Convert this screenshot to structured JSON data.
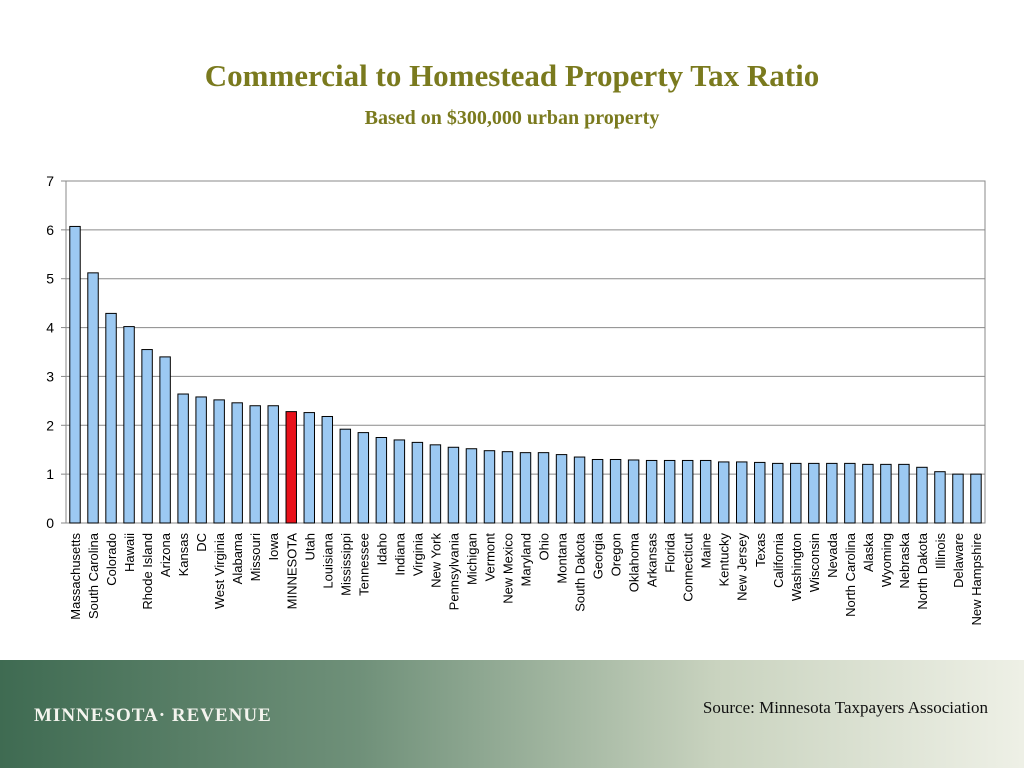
{
  "header": {
    "title": "Commercial to Homestead Property Tax Ratio",
    "subtitle": "Based on $300,000 urban property"
  },
  "footer": {
    "brand": "MINNESOTA· REVENUE",
    "source": "Source: Minnesota Taxpayers Association"
  },
  "colors": {
    "bar": "#9cc9f2",
    "highlight": "#e8111a",
    "title": "#7a7a1e"
  },
  "chart_data": {
    "type": "bar",
    "title": "Commercial to Homestead Property Tax Ratio",
    "subtitle": "Based on $300,000 urban property",
    "xlabel": "",
    "ylabel": "",
    "ylim": [
      0,
      7
    ],
    "yticks": [
      0,
      1,
      2,
      3,
      4,
      5,
      6,
      7
    ],
    "grid": true,
    "highlight": "MINNESOTA",
    "categories": [
      "Massachusetts",
      "South Carolina",
      "Colorado",
      "Hawaii",
      "Rhode Island",
      "Arizona",
      "Kansas",
      "DC",
      "West Virginia",
      "Alabama",
      "Missouri",
      "Iowa",
      "MINNESOTA",
      "Utah",
      "Louisiana",
      "Mississippi",
      "Tennessee",
      "Idaho",
      "Indiana",
      "Virginia",
      "New York",
      "Pennsylvania",
      "Michigan",
      "Vermont",
      "New Mexico",
      "Maryland",
      "Ohio",
      "Montana",
      "South Dakota",
      "Georgia",
      "Oregon",
      "Oklahoma",
      "Arkansas",
      "Florida",
      "Connecticut",
      "Maine",
      "Kentucky",
      "New Jersey",
      "Texas",
      "California",
      "Washington",
      "Wisconsin",
      "Nevada",
      "North Carolina",
      "Alaska",
      "Wyoming",
      "Nebraska",
      "North Dakota",
      "Illinois",
      "Delaware",
      "New Hampshire"
    ],
    "values": [
      6.07,
      5.12,
      4.29,
      4.02,
      3.55,
      3.4,
      2.64,
      2.58,
      2.52,
      2.46,
      2.4,
      2.4,
      2.28,
      2.26,
      2.18,
      1.92,
      1.85,
      1.75,
      1.7,
      1.65,
      1.6,
      1.55,
      1.52,
      1.48,
      1.46,
      1.44,
      1.44,
      1.4,
      1.35,
      1.3,
      1.3,
      1.29,
      1.28,
      1.28,
      1.28,
      1.28,
      1.25,
      1.25,
      1.24,
      1.22,
      1.22,
      1.22,
      1.22,
      1.22,
      1.2,
      1.2,
      1.2,
      1.14,
      1.05,
      1.0,
      1.0
    ]
  }
}
